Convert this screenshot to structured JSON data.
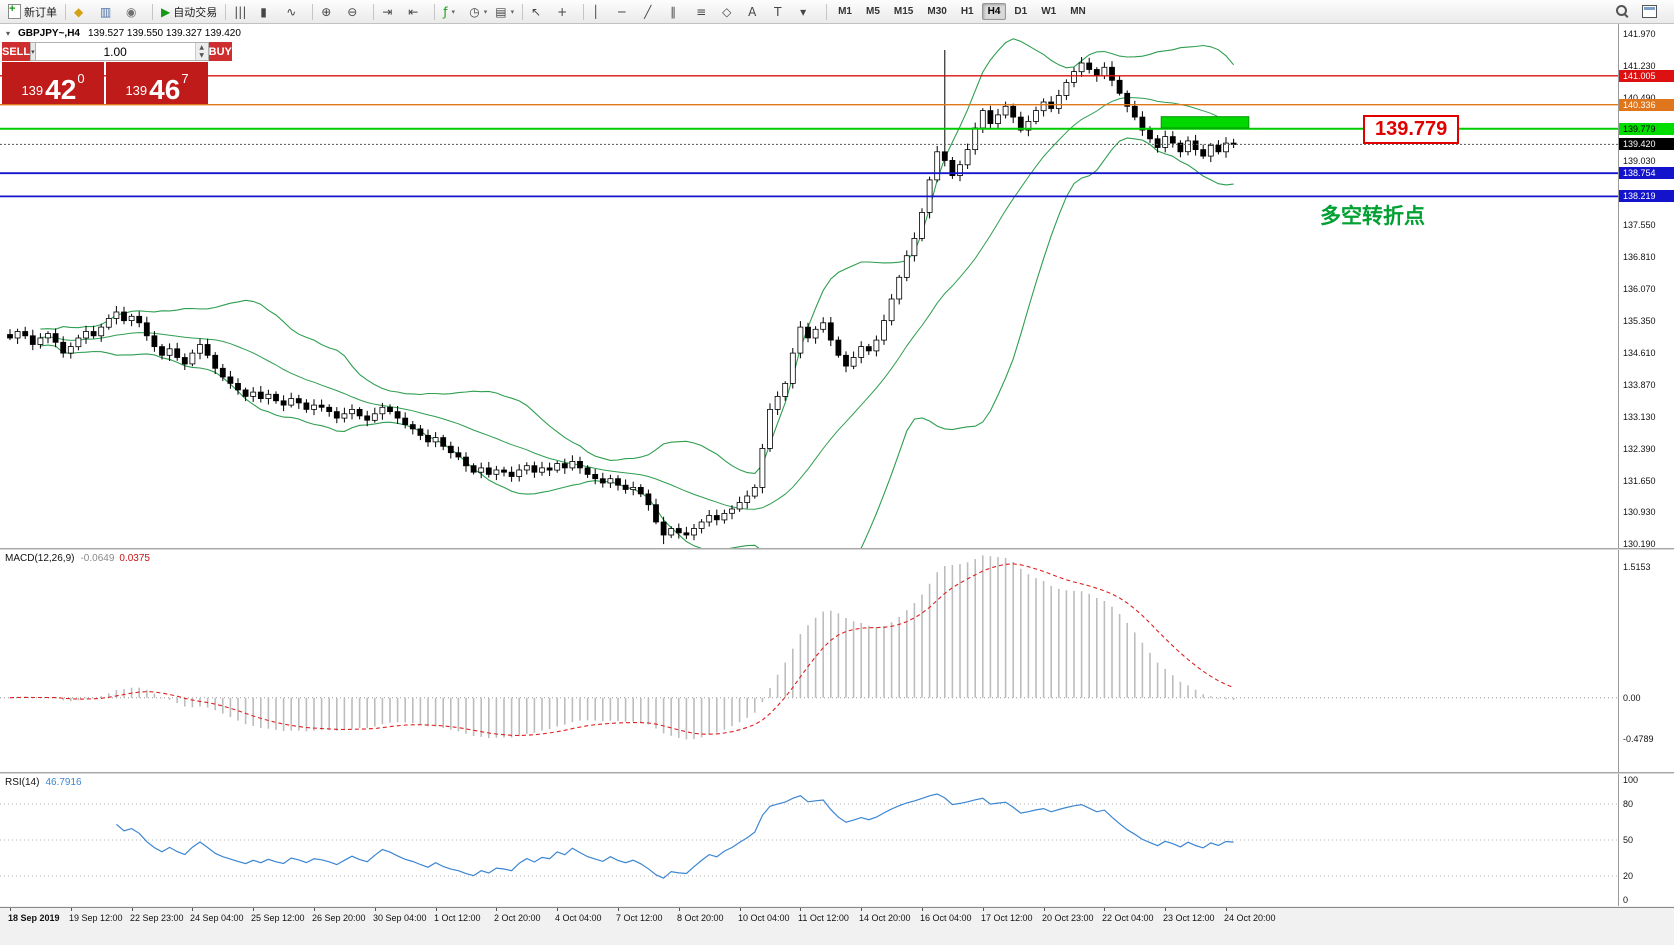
{
  "toolbar": {
    "dropdown_icon": "▾",
    "groups": [
      {
        "items": [
          {
            "name": "new-order-button",
            "glyph": "doc-plus",
            "label": "新订单"
          }
        ]
      },
      {
        "items": [
          {
            "name": "market-watch-icon",
            "glyph": "◆",
            "color": "#d4a017"
          },
          {
            "name": "data-window-icon",
            "glyph": "▥",
            "color": "#4a6fa5"
          },
          {
            "name": "navigator-icon",
            "glyph": "◉",
            "color": "#6f6f6f"
          }
        ]
      },
      {
        "items": [
          {
            "name": "autotrading-button",
            "glyph": "▶",
            "color": "#159a15",
            "label": "自动交易"
          }
        ]
      },
      {
        "items": [
          {
            "name": "bar-chart-icon",
            "glyph": "|||"
          },
          {
            "name": "candlestick-chart-icon",
            "glyph": "▮"
          },
          {
            "name": "line-chart-icon",
            "glyph": "∿"
          }
        ]
      },
      {
        "items": [
          {
            "name": "zoom-in-icon",
            "glyph": "⊕"
          },
          {
            "name": "zoom-out-icon",
            "glyph": "⊖"
          }
        ]
      },
      {
        "items": [
          {
            "name": "autoscroll-icon",
            "glyph": "⇥"
          },
          {
            "name": "chart-shift-icon",
            "glyph": "⇤"
          }
        ]
      },
      {
        "items": [
          {
            "name": "indicators-icon",
            "glyph": "ƒ",
            "color": "#159a15",
            "dropdown": true
          },
          {
            "name": "periods-icon",
            "glyph": "◷",
            "dropdown": true
          },
          {
            "name": "templates-icon",
            "glyph": "▤",
            "dropdown": true
          }
        ]
      },
      {
        "items": [
          {
            "name": "cursor-icon",
            "glyph": "↖"
          },
          {
            "name": "crosshair-icon",
            "glyph": "+"
          }
        ]
      },
      {
        "items": [
          {
            "name": "vertical-line-icon",
            "glyph": "│"
          },
          {
            "name": "horizontal-line-icon",
            "glyph": "─"
          },
          {
            "name": "trendline-icon",
            "glyph": "╱"
          },
          {
            "name": "channel-icon",
            "glyph": "∥"
          },
          {
            "name": "fibonacci-icon",
            "glyph": "≡"
          },
          {
            "name": "shapes-icon",
            "glyph": "◇"
          },
          {
            "name": "text-icon",
            "glyph": "A"
          },
          {
            "name": "label-icon",
            "glyph": "T"
          },
          {
            "name": "arrows-icon",
            "glyph": "▾"
          }
        ]
      }
    ],
    "timeframes": [
      {
        "label": "M1"
      },
      {
        "label": "M5"
      },
      {
        "label": "M15"
      },
      {
        "label": "M30"
      },
      {
        "label": "H1"
      },
      {
        "label": "H4",
        "active": true
      },
      {
        "label": "D1"
      },
      {
        "label": "W1"
      },
      {
        "label": "MN"
      }
    ],
    "right_icons": [
      {
        "name": "search-icon"
      },
      {
        "name": "new-window-icon"
      }
    ]
  },
  "symbol_bar": {
    "collapse_icon": "▾",
    "title": "GBPJPY~,H4",
    "ohlc": "139.527 139.550 139.327 139.420"
  },
  "trade_panel": {
    "sell_label": "SELL",
    "buy_label": "BUY",
    "volume": "1.00",
    "caret_icon": "▾",
    "spinner_up_icon": "▲",
    "spinner_down_icon": "▼",
    "sell_price": {
      "prefix": "139",
      "big": "42",
      "sup": "0"
    },
    "buy_price": {
      "prefix": "139",
      "big": "46",
      "sup": "7"
    }
  },
  "annotations": {
    "price_tag": "139.779",
    "turning_point_text": "多空转折点"
  },
  "chart_data": {
    "type": "candlestick",
    "symbol": "GBPJPY~",
    "timeframe": "H4",
    "ohlc_display": [
      139.527,
      139.55,
      139.327,
      139.42
    ],
    "ylim": [
      130.1,
      142.2
    ],
    "closes": [
      134.95,
      135.1,
      135.0,
      134.8,
      134.95,
      135.05,
      134.85,
      134.6,
      134.75,
      134.95,
      135.1,
      135.0,
      135.2,
      135.4,
      135.55,
      135.35,
      135.45,
      135.3,
      135.0,
      134.75,
      134.55,
      134.7,
      134.5,
      134.35,
      134.6,
      134.8,
      134.55,
      134.25,
      134.05,
      133.9,
      133.75,
      133.6,
      133.7,
      133.55,
      133.65,
      133.5,
      133.4,
      133.55,
      133.45,
      133.3,
      133.4,
      133.35,
      133.25,
      133.1,
      133.2,
      133.3,
      133.15,
      133.05,
      133.2,
      133.35,
      133.25,
      133.1,
      132.95,
      132.85,
      132.7,
      132.55,
      132.65,
      132.45,
      132.3,
      132.2,
      132.0,
      131.85,
      131.95,
      131.8,
      131.9,
      131.85,
      131.75,
      131.9,
      132.0,
      131.85,
      131.95,
      131.9,
      132.05,
      131.95,
      132.1,
      131.95,
      131.8,
      131.7,
      131.6,
      131.7,
      131.55,
      131.45,
      131.5,
      131.35,
      131.1,
      130.7,
      130.4,
      130.55,
      130.45,
      130.4,
      130.55,
      130.7,
      130.85,
      130.75,
      130.9,
      131.0,
      131.15,
      131.3,
      131.5,
      132.4,
      133.3,
      133.6,
      133.9,
      134.6,
      135.2,
      134.95,
      135.15,
      135.3,
      134.9,
      134.55,
      134.3,
      134.5,
      134.75,
      134.65,
      134.9,
      135.35,
      135.85,
      136.35,
      136.85,
      137.25,
      137.85,
      138.6,
      139.25,
      139.05,
      138.7,
      138.95,
      139.3,
      139.8,
      140.2,
      139.9,
      140.1,
      140.3,
      140.05,
      139.75,
      139.95,
      140.2,
      140.4,
      140.25,
      140.55,
      140.85,
      141.1,
      141.3,
      141.15,
      141.0,
      141.2,
      140.9,
      140.6,
      140.3,
      140.05,
      139.75,
      139.55,
      139.35,
      139.6,
      139.45,
      139.25,
      139.5,
      139.3,
      139.15,
      139.4,
      139.25,
      139.45,
      139.42
    ],
    "spikes": [
      {
        "index": 123,
        "high": 141.6
      },
      {
        "index": 86,
        "low": 130.19
      }
    ],
    "bollinger": {
      "period": 20,
      "deviation": 2,
      "color": "#2e9e4f"
    },
    "hlines": [
      {
        "price": 141.005,
        "label": "141.005",
        "color": "#dd1111",
        "label_bg": "#dd1111",
        "label_fg": "#ffffff",
        "width": 1.4
      },
      {
        "price": 140.336,
        "label": "140.336",
        "color": "#e0761c",
        "label_bg": "#e0761c",
        "label_fg": "#ffffff",
        "width": 1.4
      },
      {
        "price": 139.779,
        "label": "139.779",
        "color": "#00cc00",
        "label_bg": "#00dd00",
        "label_fg": "#000000",
        "width": 2
      },
      {
        "price": 138.754,
        "label": "138.754",
        "color": "#1313cc",
        "label_bg": "#1313cc",
        "label_fg": "#ffffff",
        "width": 1.8
      },
      {
        "price": 138.219,
        "label": "138.219",
        "color": "#1313cc",
        "label_bg": "#1313cc",
        "label_fg": "#ffffff",
        "width": 1.8
      }
    ],
    "current_price": {
      "value": 139.42,
      "label": "139.420",
      "label_bg": "#000000",
      "label_fg": "#ffffff"
    },
    "highlight_box": {
      "start_index": 152,
      "end_index": 163,
      "price_top": 140.06,
      "price_bottom": 139.8,
      "color": "#00d800",
      "border": "#009900"
    },
    "indicators": [
      "Bollinger Bands",
      "MACD(12,26,9)",
      "RSI(14)"
    ]
  },
  "price_axis": {
    "ticks": [
      141.97,
      141.23,
      140.49,
      139.03,
      137.55,
      136.81,
      136.07,
      135.35,
      134.61,
      133.87,
      133.13,
      132.39,
      131.65,
      130.93,
      130.19
    ]
  },
  "macd_panel": {
    "title": "MACD(12,26,9)",
    "main_value": "-0.0649",
    "signal_value": "0.0375",
    "axis_labels": [
      "1.5153",
      "0.00",
      "-0.4789"
    ],
    "axis_values": [
      1.5153,
      0,
      -0.4789
    ],
    "histogram_color": "#bdbdbd",
    "signal_color": "#dd2222"
  },
  "rsi_panel": {
    "title": "RSI(14)",
    "value": "46.7916",
    "axis_labels": [
      "100",
      "80",
      "50",
      "20",
      "0"
    ],
    "axis_values": [
      100,
      80,
      50,
      20,
      0
    ],
    "levels": [
      80,
      50,
      20
    ],
    "line_color": "#3c86d2"
  },
  "time_axis": {
    "step_bars": 8,
    "labels": [
      "18 Sep 2019",
      "19 Sep 12:00",
      "22 Sep 23:00",
      "24 Sep 04:00",
      "25 Sep 12:00",
      "26 Sep 20:00",
      "30 Sep 04:00",
      "1 Oct 12:00",
      "2 Oct 20:00",
      "4 Oct 04:00",
      "7 Oct 12:00",
      "8 Oct 20:00",
      "10 Oct 04:00",
      "11 Oct 12:00",
      "14 Oct 20:00",
      "16 Oct 04:00",
      "17 Oct 12:00",
      "20 Oct 23:00",
      "22 Oct 04:00",
      "23 Oct 12:00",
      "24 Oct 20:00"
    ]
  }
}
